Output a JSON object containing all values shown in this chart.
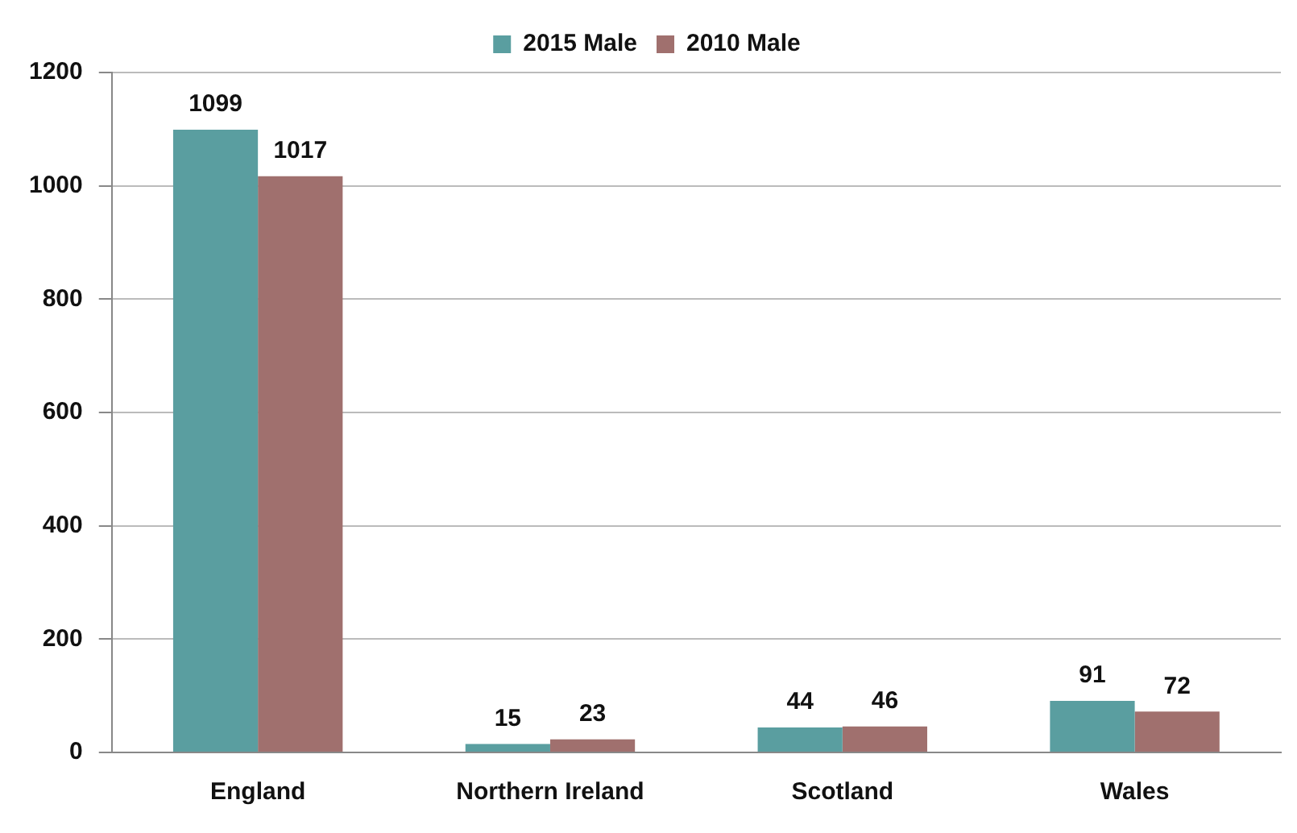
{
  "chart_data": {
    "type": "bar",
    "categories": [
      "England",
      "Northern Ireland",
      "Scotland",
      "Wales"
    ],
    "series": [
      {
        "name": "2015 Male",
        "color": "#5a9ea0",
        "values": [
          1099,
          15,
          44,
          91
        ]
      },
      {
        "name": "2010 Male",
        "color": "#a0706e",
        "values": [
          1017,
          23,
          46,
          72
        ]
      }
    ],
    "ylim": [
      0,
      1200
    ],
    "yticks": [
      0,
      200,
      400,
      600,
      800,
      1000,
      1200
    ],
    "grid": "y",
    "legend": "top",
    "data_labels": true
  }
}
